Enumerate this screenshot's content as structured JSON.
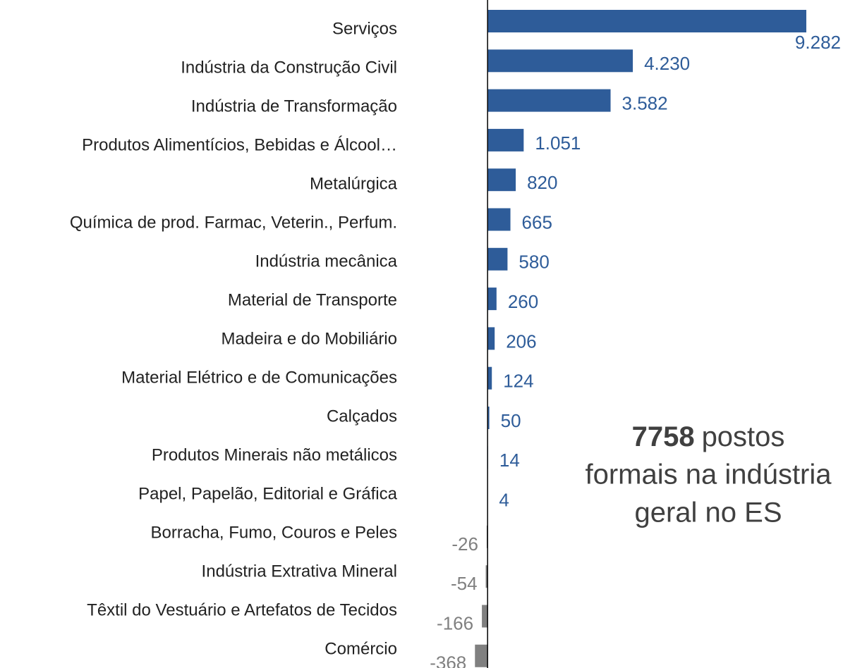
{
  "chart_data": {
    "type": "bar",
    "orientation": "horizontal",
    "categories": [
      "Serviços",
      "Indústria da Construção Civil",
      "Indústria de Transformação",
      "Produtos Alimentícios, Bebidas e Álcool…",
      "Metalúrgica",
      "Química de prod. Farmac, Veterin., Perfum.",
      "Indústria mecânica",
      "Material de Transporte",
      "Madeira e do Mobiliário",
      "Material Elétrico e de Comunicações",
      "Calçados",
      "Produtos Minerais não metálicos",
      "Papel, Papelão, Editorial e Gráfica",
      "Borracha, Fumo, Couros e Peles",
      "Indústria Extrativa Mineral",
      "Têxtil do Vestuário e Artefatos de Tecidos",
      "Comércio"
    ],
    "values": [
      9282,
      4230,
      3582,
      1051,
      820,
      665,
      580,
      260,
      206,
      124,
      50,
      14,
      4,
      -26,
      -54,
      -166,
      -368
    ],
    "value_labels": [
      "9.282",
      "4.230",
      "3.582",
      "1.051",
      "820",
      "665",
      "580",
      "260",
      "206",
      "124",
      "50",
      "14",
      "4",
      "-26",
      "-54",
      "-166",
      "-368"
    ],
    "color": "#2e5c99",
    "negative_color": "#808080",
    "xlim": [
      -14200,
      10700
    ],
    "annotation": {
      "highlight": "7758",
      "lines": [
        "postos",
        "formais na indústria",
        "geral no ES"
      ]
    }
  }
}
